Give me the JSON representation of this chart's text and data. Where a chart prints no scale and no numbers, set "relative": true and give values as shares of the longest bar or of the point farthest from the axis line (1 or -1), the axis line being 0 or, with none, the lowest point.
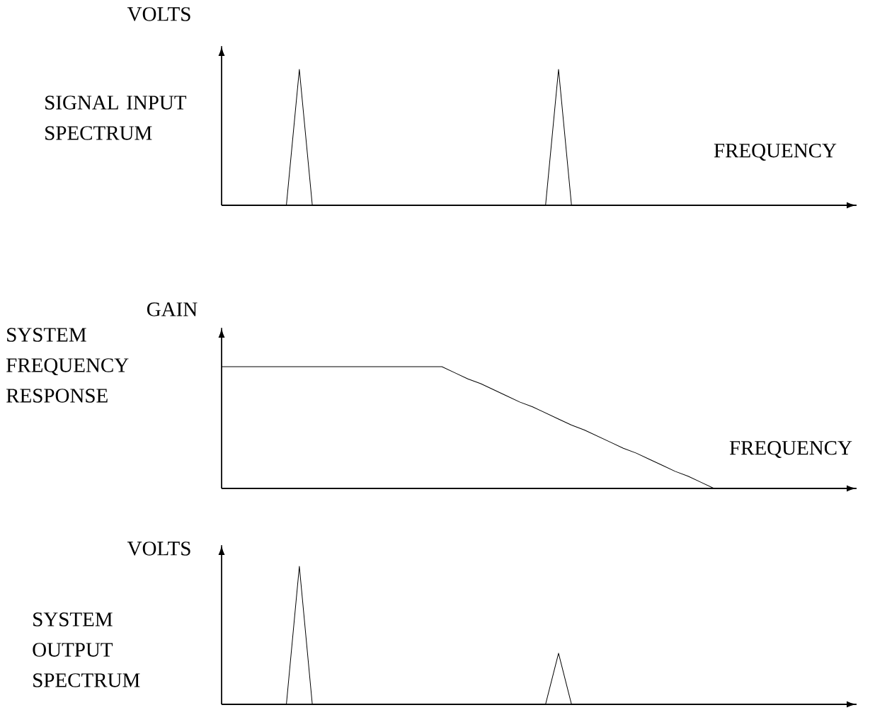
{
  "chart_data": [
    {
      "type": "line",
      "relative": true,
      "title": "SIGNAL INPUT SPECTRUM",
      "ylabel": "VOLTS",
      "xlabel": "FREQUENCY",
      "color": "#000000",
      "categories": [
        null,
        null,
        null,
        null,
        null,
        null,
        null,
        null,
        null,
        null,
        null,
        null,
        null,
        null,
        null,
        null,
        null,
        null,
        null,
        null,
        null,
        null,
        null,
        null,
        null,
        null,
        null,
        null,
        null,
        null,
        null,
        null,
        null,
        null,
        null,
        null,
        null,
        null,
        null,
        null,
        null,
        null,
        null,
        null,
        null,
        null,
        null,
        null,
        null,
        null
      ],
      "values": [
        0,
        0,
        0,
        0,
        0,
        0,
        1,
        0,
        0,
        0,
        0,
        0,
        0,
        0,
        0,
        0,
        0,
        0,
        0,
        0,
        0,
        0,
        0,
        0,
        0,
        0,
        1,
        0,
        0,
        0,
        0,
        0,
        0,
        0,
        0,
        0,
        0,
        0,
        0,
        0,
        0,
        0,
        0,
        0,
        0,
        0,
        0,
        0,
        0,
        0
      ]
    },
    {
      "type": "line",
      "relative": true,
      "title": "SYSTEM FREQUENCY RESPONSE",
      "ylabel": "GAIN",
      "xlabel": "FREQUENCY",
      "color": "#000000",
      "categories": [
        null,
        null,
        null,
        null,
        null,
        null,
        null,
        null,
        null,
        null,
        null,
        null,
        null,
        null,
        null,
        null,
        null,
        null,
        null,
        null,
        null,
        null,
        null,
        null,
        null,
        null,
        null,
        null,
        null,
        null,
        null,
        null,
        null,
        null,
        null,
        null,
        null,
        null,
        null,
        null,
        null,
        null,
        null,
        null,
        null,
        null,
        null,
        null,
        null,
        null
      ],
      "values": [
        1,
        1,
        1,
        1,
        1,
        1,
        1,
        1,
        1,
        1,
        1,
        1,
        1,
        1,
        1,
        1,
        1,
        1,
        0.95,
        0.9,
        0.86,
        0.81,
        0.76,
        0.71,
        0.67,
        0.62,
        0.57,
        0.52,
        0.48,
        0.43,
        0.38,
        0.33,
        0.29,
        0.24,
        0.19,
        0.14,
        0.1,
        0.05,
        0,
        0,
        0,
        0,
        0,
        0,
        0,
        0,
        0,
        0,
        0,
        0
      ]
    },
    {
      "type": "line",
      "relative": true,
      "title": "SYSTEM OUTPUT SPECTRUM",
      "ylabel": "VOLTS",
      "color": "#000000",
      "categories": [
        null,
        null,
        null,
        null,
        null,
        null,
        null,
        null,
        null,
        null,
        null,
        null,
        null,
        null,
        null,
        null,
        null,
        null,
        null,
        null,
        null,
        null,
        null,
        null,
        null,
        null,
        null,
        null,
        null,
        null,
        null,
        null,
        null,
        null,
        null,
        null,
        null,
        null,
        null,
        null,
        null,
        null,
        null,
        null,
        null,
        null,
        null,
        null,
        null,
        null
      ],
      "values": [
        0,
        0,
        0,
        0,
        0,
        0,
        1,
        0,
        0,
        0,
        0,
        0,
        0,
        0,
        0,
        0,
        0,
        0,
        0,
        0,
        0,
        0,
        0,
        0,
        0,
        0,
        0.37,
        0,
        0,
        0,
        0,
        0,
        0,
        0,
        0,
        0,
        0,
        0,
        0,
        0,
        0,
        0,
        0,
        0,
        0,
        0,
        0,
        0,
        0,
        0
      ]
    }
  ]
}
